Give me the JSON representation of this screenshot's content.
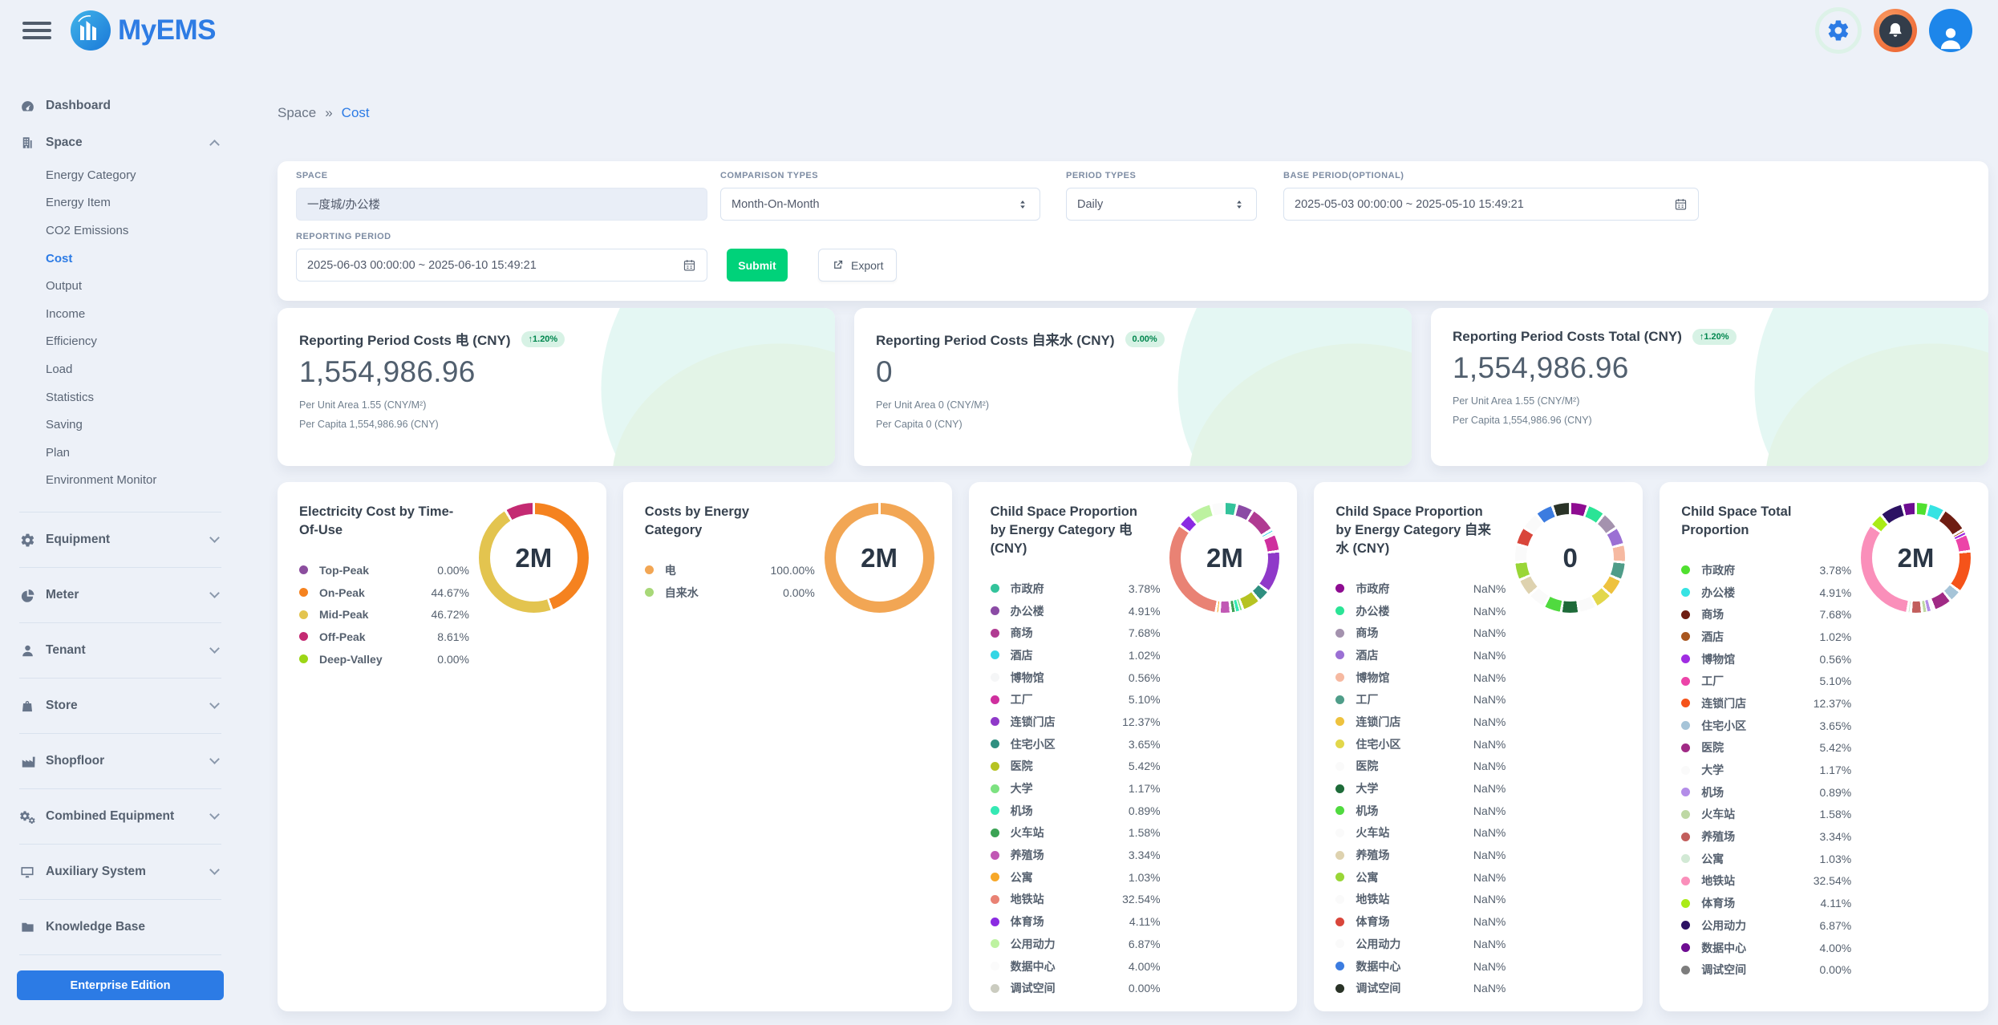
{
  "theme": {
    "accent": "#2c7be5",
    "success": "#00d27a",
    "badge_bg": "#d7f2e5",
    "badge_text": "#00864e",
    "background": "#edf1f8"
  },
  "header": {
    "logo_text": "MyEMS",
    "icons": [
      "gear-icon",
      "bell-icon",
      "user-avatar-icon"
    ]
  },
  "breadcrumb": {
    "items": [
      "Space",
      "Cost"
    ],
    "separator": "»",
    "active": "Cost"
  },
  "sidebar": {
    "groups": [
      {
        "label": "Dashboard",
        "icon": "dashboard-icon",
        "chevron": null
      },
      {
        "label": "Space",
        "icon": "building-icon",
        "chevron": "up",
        "children": [
          "Energy Category",
          "Energy Item",
          "CO2 Emissions",
          "Cost",
          "Output",
          "Income",
          "Efficiency",
          "Load",
          "Statistics",
          "Saving",
          "Plan",
          "Environment Monitor"
        ],
        "active_child": "Cost"
      },
      {
        "label": "Equipment",
        "icon": "gear-icon",
        "chevron": "down"
      },
      {
        "label": "Meter",
        "icon": "meter-pie-icon",
        "chevron": "down"
      },
      {
        "label": "Tenant",
        "icon": "person-icon",
        "chevron": "down"
      },
      {
        "label": "Store",
        "icon": "bag-icon",
        "chevron": "down"
      },
      {
        "label": "Shopfloor",
        "icon": "factory-icon",
        "chevron": "down"
      },
      {
        "label": "Combined Equipment",
        "icon": "gears-icon",
        "chevron": "down"
      },
      {
        "label": "Auxiliary System",
        "icon": "monitor-icon",
        "chevron": "down"
      },
      {
        "label": "Knowledge Base",
        "icon": "folder-icon",
        "chevron": null
      }
    ],
    "edition_button": "Enterprise Edition"
  },
  "filters": {
    "space": {
      "label": "SPACE",
      "value": "一度城/办公楼"
    },
    "comparison": {
      "label": "COMPARISON TYPES",
      "value": "Month-On-Month"
    },
    "period": {
      "label": "PERIOD TYPES",
      "value": "Daily"
    },
    "base_period": {
      "label": "BASE PERIOD(OPTIONAL)",
      "value": "2025-05-03 00:00:00 ~ 2025-05-10 15:49:21"
    },
    "reporting_period": {
      "label": "REPORTING PERIOD",
      "value": "2025-06-03 00:00:00 ~ 2025-06-10 15:49:21"
    },
    "submit_label": "Submit",
    "export_label": "Export"
  },
  "stat_cards": [
    {
      "title": "Reporting Period Costs 电 (CNY)",
      "badge": "↑1.20%",
      "value": "1,554,986.96",
      "per_unit_area": "Per Unit Area 1.55 (CNY/M²)",
      "per_capita": "Per Capita 1,554,986.96 (CNY)"
    },
    {
      "title": "Reporting Period Costs 自来水 (CNY)",
      "badge": "0.00%",
      "value": "0",
      "per_unit_area": "Per Unit Area 0 (CNY/M²)",
      "per_capita": "Per Capita 0 (CNY)"
    },
    {
      "title": "Reporting Period Costs Total (CNY)",
      "badge": "↑1.20%",
      "value": "1,554,986.96",
      "per_unit_area": "Per Unit Area 1.55 (CNY/M²)",
      "per_capita": "Per Capita 1,554,986.96 (CNY)"
    }
  ],
  "chart_data": [
    {
      "type": "donut",
      "title": "Electricity Cost by Time-Of-Use",
      "center_label": "2M",
      "legend_position": "left",
      "categories": [
        "Top-Peak",
        "On-Peak",
        "Mid-Peak",
        "Off-Peak",
        "Deep-Valley"
      ],
      "values": [
        0,
        44.67,
        46.72,
        8.61,
        0
      ],
      "labels": [
        "0.00%",
        "44.67%",
        "46.72%",
        "8.61%",
        "0.00%"
      ],
      "colors": [
        "#8b4d9e",
        "#f5821f",
        "#e3c44f",
        "#c42a72",
        "#9cd616"
      ]
    },
    {
      "type": "donut",
      "title": "Costs by Energy Category",
      "center_label": "2M",
      "legend_position": "left",
      "categories": [
        "电",
        "自来水"
      ],
      "values": [
        100,
        0
      ],
      "labels": [
        "100.00%",
        "0.00%"
      ],
      "colors": [
        "#f2a654",
        "#a8d878"
      ]
    },
    {
      "type": "donut",
      "title": "Child Space Proportion by Energy Category 电 (CNY)",
      "center_label": "2M",
      "legend_position": "left",
      "categories": [
        "市政府",
        "办公楼",
        "商场",
        "酒店",
        "博物馆",
        "工厂",
        "连锁门店",
        "住宅小区",
        "医院",
        "大学",
        "机场",
        "火车站",
        "养殖场",
        "公寓",
        "地铁站",
        "体育场",
        "公用动力",
        "数据中心",
        "调试空间"
      ],
      "values": [
        3.78,
        4.91,
        7.68,
        1.02,
        0.56,
        5.1,
        12.37,
        3.65,
        5.42,
        1.17,
        0.89,
        1.58,
        3.34,
        1.03,
        32.54,
        4.11,
        6.87,
        4.0,
        0.0
      ],
      "labels": [
        "3.78%",
        "4.91%",
        "7.68%",
        "1.02%",
        "0.56%",
        "5.10%",
        "12.37%",
        "3.65%",
        "5.42%",
        "1.17%",
        "0.89%",
        "1.58%",
        "3.34%",
        "1.03%",
        "32.54%",
        "4.11%",
        "6.87%",
        "4.00%",
        "0.00%"
      ],
      "colors": [
        "#33c39b",
        "#8b4ba5",
        "#b03b92",
        "#33d6e5",
        "#f5f6f7",
        "#cf2f9e",
        "#8f39c9",
        "#2f8f80",
        "#b6c322",
        "#7de281",
        "#35e9b4",
        "#3ba355",
        "#c158b4",
        "#f7a829",
        "#e98274",
        "#8b2be2",
        "#bdf2a0",
        "#fbfbfb",
        "#cbccc0"
      ]
    },
    {
      "type": "donut",
      "title": "Child Space Proportion by Energy Category 自来水 (CNY)",
      "center_label": "0",
      "legend_position": "left",
      "arc": "equal",
      "categories": [
        "市政府",
        "办公楼",
        "商场",
        "酒店",
        "博物馆",
        "工厂",
        "连锁门店",
        "住宅小区",
        "医院",
        "大学",
        "机场",
        "火车站",
        "养殖场",
        "公寓",
        "地铁站",
        "体育场",
        "公用动力",
        "数据中心",
        "调试空间"
      ],
      "values": [
        null,
        null,
        null,
        null,
        null,
        null,
        null,
        null,
        null,
        null,
        null,
        null,
        null,
        null,
        null,
        null,
        null,
        null,
        null
      ],
      "labels": [
        "NaN%",
        "NaN%",
        "NaN%",
        "NaN%",
        "NaN%",
        "NaN%",
        "NaN%",
        "NaN%",
        "NaN%",
        "NaN%",
        "NaN%",
        "NaN%",
        "NaN%",
        "NaN%",
        "NaN%",
        "NaN%",
        "NaN%",
        "NaN%",
        "NaN%"
      ],
      "colors": [
        "#8e0c91",
        "#2be496",
        "#a492ae",
        "#9b70d4",
        "#f6b9a1",
        "#4f9d89",
        "#eec23e",
        "#e2d74b",
        "#fafafa",
        "#1e6b39",
        "#50da3f",
        "#fafafa",
        "#ded2af",
        "#99d637",
        "#fafafa",
        "#d9463b",
        "#fafafa",
        "#3c7ce0",
        "#2a3327"
      ]
    },
    {
      "type": "donut",
      "title": "Child Space Total Proportion",
      "center_label": "2M",
      "legend_position": "left",
      "categories": [
        "市政府",
        "办公楼",
        "商场",
        "酒店",
        "博物馆",
        "工厂",
        "连锁门店",
        "住宅小区",
        "医院",
        "大学",
        "机场",
        "火车站",
        "养殖场",
        "公寓",
        "地铁站",
        "体育场",
        "公用动力",
        "数据中心",
        "调试空间"
      ],
      "values": [
        3.78,
        4.91,
        7.68,
        1.02,
        0.56,
        5.1,
        12.37,
        3.65,
        5.42,
        1.17,
        0.89,
        1.58,
        3.34,
        1.03,
        32.54,
        4.11,
        6.87,
        4.0,
        0.0
      ],
      "labels": [
        "3.78%",
        "4.91%",
        "7.68%",
        "1.02%",
        "0.56%",
        "5.10%",
        "12.37%",
        "3.65%",
        "5.42%",
        "1.17%",
        "0.89%",
        "1.58%",
        "3.34%",
        "1.03%",
        "32.54%",
        "4.11%",
        "6.87%",
        "4.00%",
        "0.00%"
      ],
      "colors": [
        "#50e02f",
        "#36e3e3",
        "#6e1d12",
        "#a8561f",
        "#a02de2",
        "#ec44a8",
        "#f5531a",
        "#a6c4d8",
        "#a02a85",
        "#fafafa",
        "#b38de8",
        "#bed8a4",
        "#c25e5c",
        "#d2e9d5",
        "#fa8fba",
        "#aaeb17",
        "#2c1263",
        "#6d0c91",
        "#7d7d7d"
      ]
    }
  ]
}
